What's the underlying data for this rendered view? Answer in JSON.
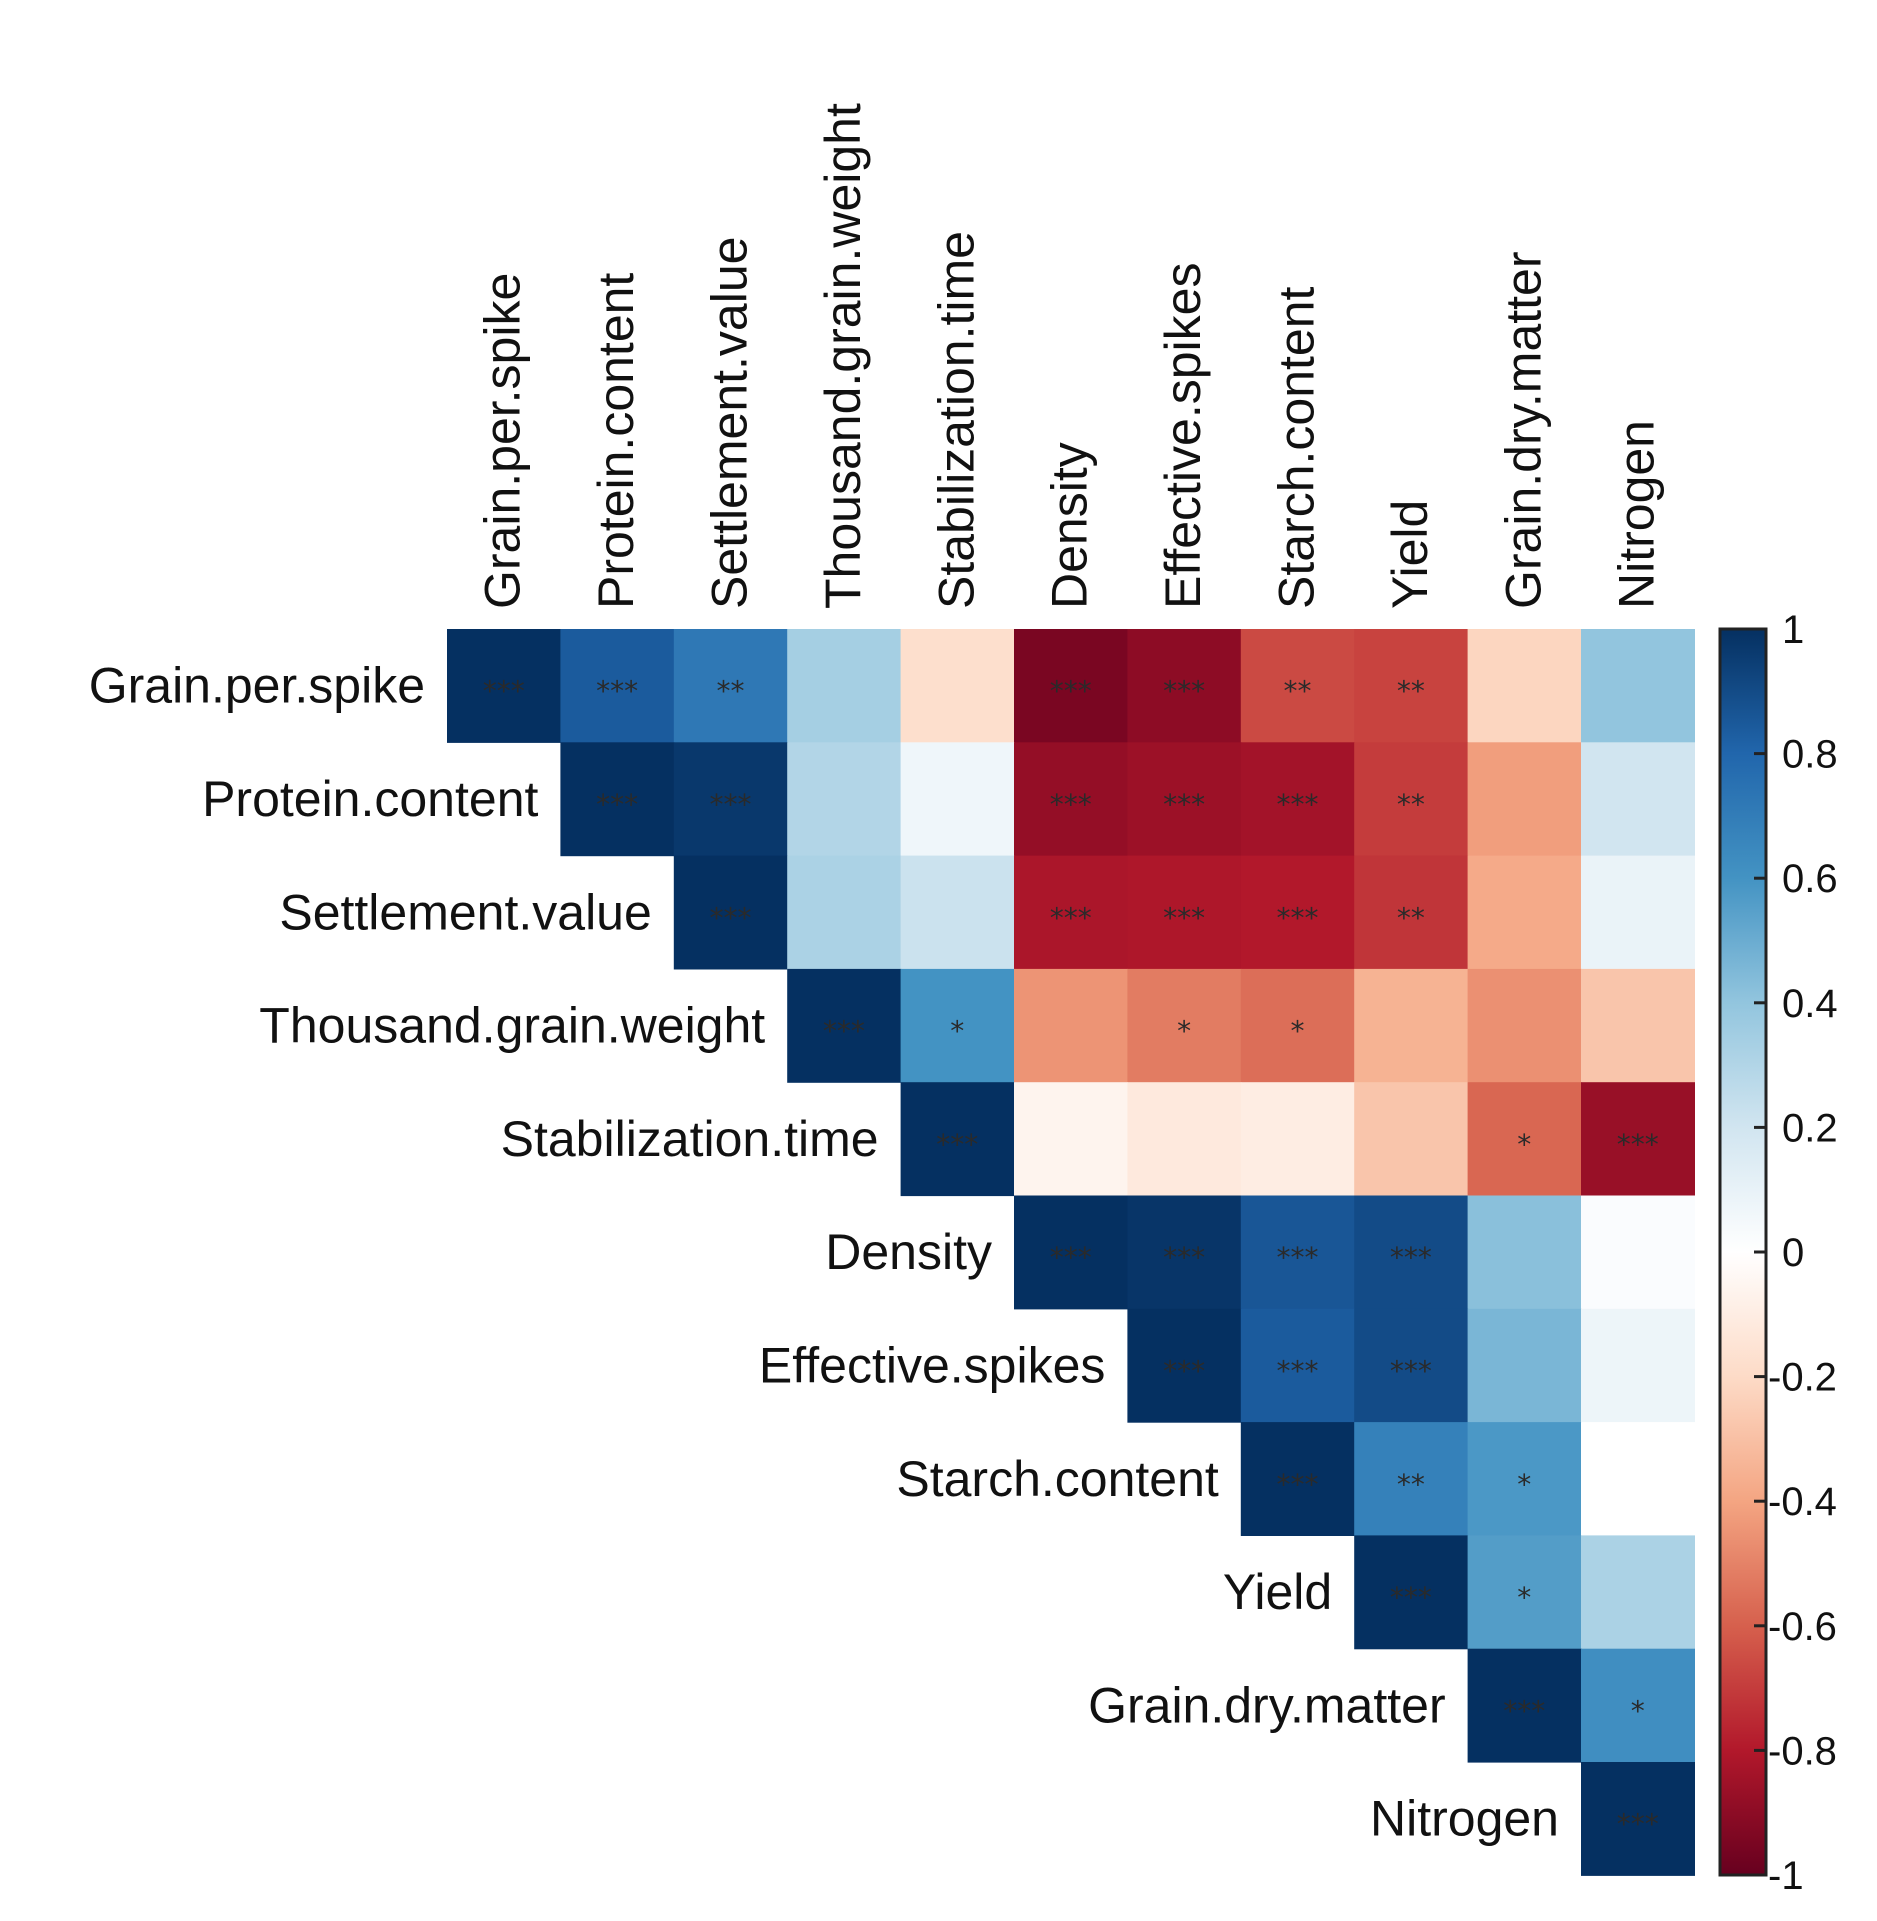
{
  "chart_data": {
    "type": "heatmap",
    "title": "",
    "variables": [
      "Grain.per.spike",
      "Protein.content",
      "Settlement.value",
      "Thousand.grain.weight",
      "Stabilization.time",
      "Density",
      "Effective.spikes",
      "Starch.content",
      "Yield",
      "Grain.dry.matter",
      "Nitrogen"
    ],
    "matrix": [
      [
        1.0,
        0.84,
        0.72,
        0.34,
        -0.18,
        -0.95,
        -0.9,
        -0.66,
        -0.68,
        -0.22,
        0.4
      ],
      [
        null,
        1.0,
        0.97,
        0.3,
        0.07,
        -0.88,
        -0.86,
        -0.84,
        -0.7,
        -0.42,
        0.2
      ],
      [
        null,
        null,
        1.0,
        0.32,
        0.22,
        -0.82,
        -0.81,
        -0.8,
        -0.72,
        -0.38,
        0.09
      ],
      [
        null,
        null,
        null,
        1.0,
        0.6,
        -0.45,
        -0.52,
        -0.56,
        -0.35,
        -0.46,
        -0.28
      ],
      [
        null,
        null,
        null,
        null,
        1.0,
        -0.06,
        -0.12,
        -0.1,
        -0.28,
        -0.58,
        -0.87
      ],
      [
        null,
        null,
        null,
        null,
        null,
        1.0,
        0.98,
        0.86,
        0.9,
        0.42,
        0.02
      ],
      [
        null,
        null,
        null,
        null,
        null,
        null,
        1.0,
        0.84,
        0.9,
        0.46,
        0.08
      ],
      [
        null,
        null,
        null,
        null,
        null,
        null,
        null,
        1.0,
        0.68,
        0.58,
        0.0
      ],
      [
        null,
        null,
        null,
        null,
        null,
        null,
        null,
        null,
        1.0,
        0.56,
        0.32
      ],
      [
        null,
        null,
        null,
        null,
        null,
        null,
        null,
        null,
        null,
        1.0,
        0.62
      ],
      [
        null,
        null,
        null,
        null,
        null,
        null,
        null,
        null,
        null,
        null,
        1.0
      ]
    ],
    "significance": [
      [
        "***",
        "***",
        "**",
        "",
        "",
        "***",
        "***",
        "**",
        "**",
        "",
        ""
      ],
      [
        null,
        "***",
        "***",
        "",
        "",
        "***",
        "***",
        "***",
        "**",
        "",
        ""
      ],
      [
        null,
        null,
        "***",
        "",
        "",
        "***",
        "***",
        "***",
        "**",
        "",
        ""
      ],
      [
        null,
        null,
        null,
        "***",
        "*",
        "",
        "*",
        "*",
        "",
        "",
        ""
      ],
      [
        null,
        null,
        null,
        null,
        "***",
        "",
        "",
        "",
        "",
        "*",
        "***"
      ],
      [
        null,
        null,
        null,
        null,
        null,
        "***",
        "***",
        "***",
        "***",
        "",
        ""
      ],
      [
        null,
        null,
        null,
        null,
        null,
        null,
        "***",
        "***",
        "***",
        "",
        ""
      ],
      [
        null,
        null,
        null,
        null,
        null,
        null,
        null,
        "***",
        "**",
        "*",
        ""
      ],
      [
        null,
        null,
        null,
        null,
        null,
        null,
        null,
        null,
        "***",
        "*",
        ""
      ],
      [
        null,
        null,
        null,
        null,
        null,
        null,
        null,
        null,
        null,
        "***",
        "*"
      ],
      [
        null,
        null,
        null,
        null,
        null,
        null,
        null,
        null,
        null,
        null,
        "***"
      ]
    ],
    "colorbar": {
      "range": [
        -1,
        1
      ],
      "tick_labels": [
        "1",
        "0.8",
        "0.6",
        "0.4",
        "0.2",
        "0",
        "-0.2",
        "-0.4",
        "-0.6",
        "-0.8",
        "-1"
      ]
    },
    "palette": [
      "#67001f",
      "#b2182b",
      "#d6604d",
      "#f4a582",
      "#fddbc7",
      "#ffffff",
      "#d1e5f0",
      "#92c5de",
      "#4393c3",
      "#2166ac",
      "#053061"
    ]
  }
}
